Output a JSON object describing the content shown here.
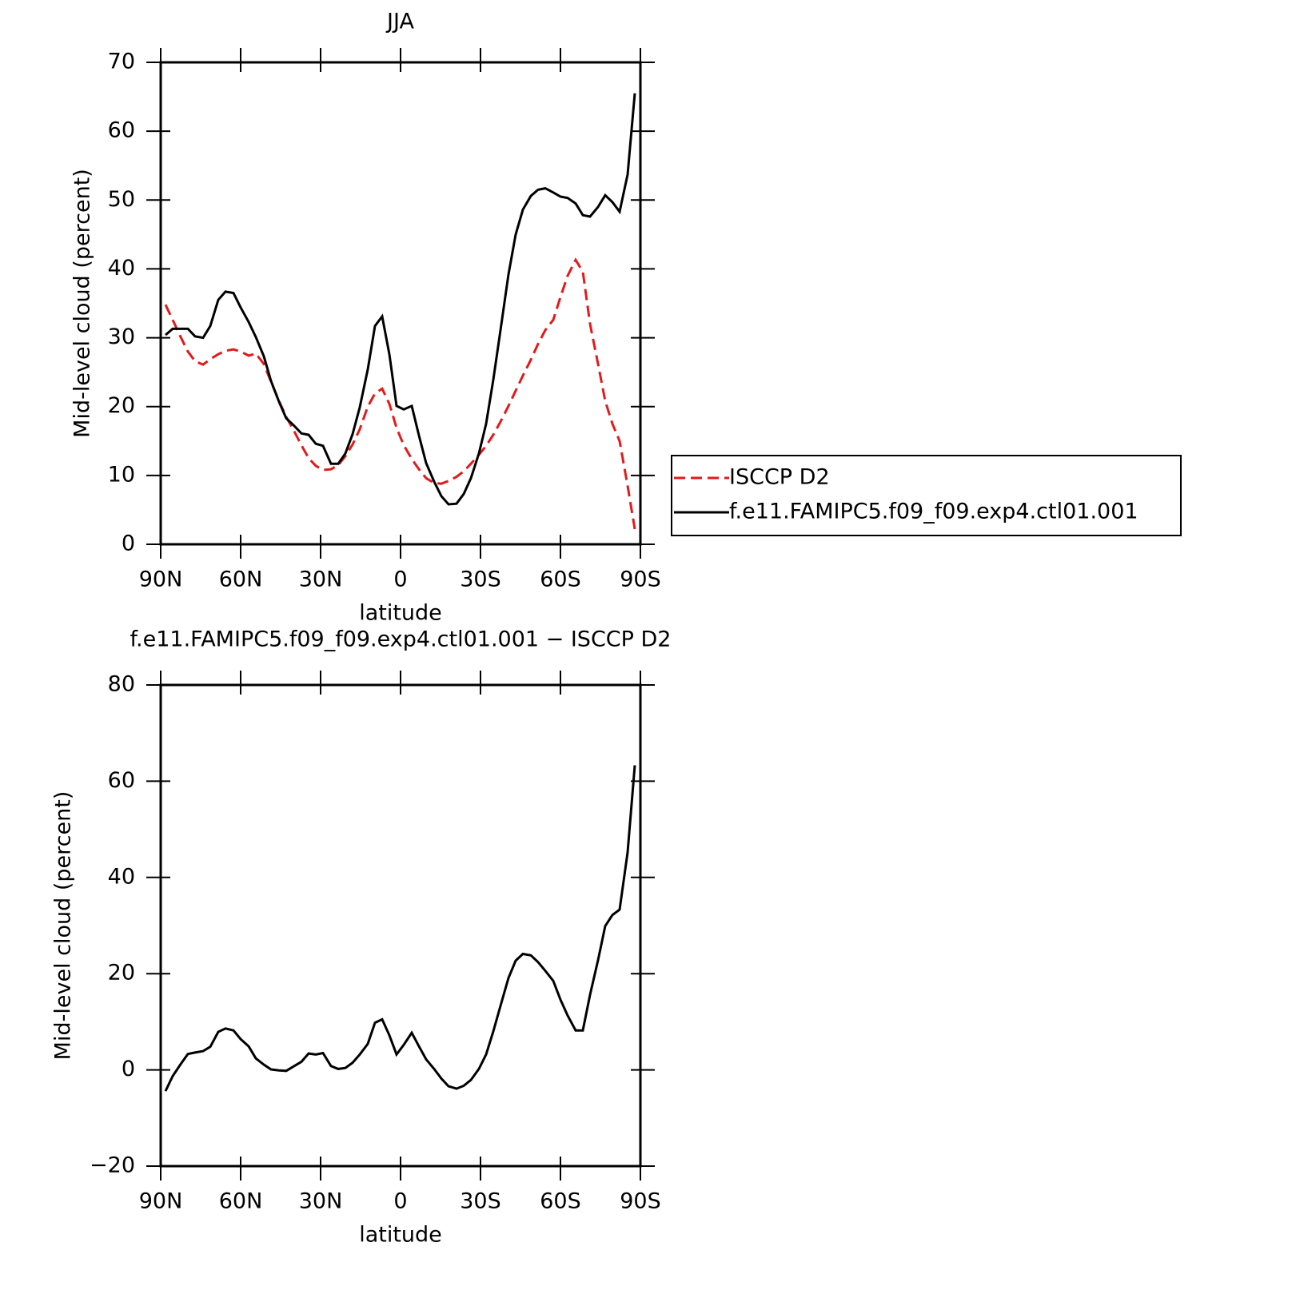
{
  "chart_data": [
    {
      "type": "line",
      "title": "JJA",
      "x_label": "latitude",
      "y_label": "Mid-level cloud (percent)",
      "x": [
        88.2,
        85.5,
        82.5,
        79.8,
        77.1,
        74.1,
        71.4,
        68.4,
        65.7,
        62.7,
        60.0,
        57.0,
        54.3,
        51.3,
        48.6,
        45.6,
        42.9,
        39.9,
        37.2,
        34.5,
        31.8,
        29.1,
        26.1,
        23.4,
        20.7,
        18.0,
        15.3,
        12.3,
        9.6,
        6.9,
        4.2,
        1.5,
        -1.2,
        -4.2,
        -6.9,
        -9.6,
        -12.6,
        -15.3,
        -18.0,
        -21.0,
        -23.7,
        -26.4,
        -29.4,
        -32.1,
        -34.8,
        -37.5,
        -40.5,
        -43.2,
        -45.9,
        -48.9,
        -51.6,
        -54.3,
        -57.3,
        -60.0,
        -62.7,
        -65.7,
        -68.4,
        -71.1,
        -74.1,
        -76.8,
        -79.5,
        -82.2,
        -85.2,
        -87.9
      ],
      "series": [
        {
          "name": "ISCCP D2",
          "color": "#e31a1c",
          "dashed": true,
          "values": [
            34.8,
            32.6,
            30.1,
            28.0,
            26.6,
            26.1,
            26.9,
            27.6,
            28.1,
            28.3,
            28.0,
            27.4,
            27.7,
            26.2,
            23.6,
            20.8,
            18.5,
            16.4,
            14.4,
            12.5,
            11.4,
            10.8,
            10.9,
            11.5,
            12.8,
            14.5,
            16.7,
            20.0,
            21.9,
            22.6,
            20.4,
            16.9,
            14.4,
            12.4,
            10.9,
            9.6,
            8.9,
            8.8,
            9.2,
            9.8,
            10.6,
            11.7,
            13.0,
            14.3,
            15.9,
            17.8,
            20.1,
            22.3,
            24.5,
            26.8,
            29.1,
            31.1,
            32.6,
            35.9,
            39.0,
            41.3,
            39.6,
            32.0,
            26.2,
            20.8,
            17.5,
            15.0,
            8.5,
            2.2
          ]
        },
        {
          "name": "f.e11.FAMIPC5.f09_f09.exp4.ctl01.001",
          "color": "#000000",
          "dashed": false,
          "values": [
            30.4,
            31.3,
            31.3,
            31.3,
            30.2,
            30.0,
            31.7,
            35.5,
            36.7,
            36.5,
            34.4,
            32.3,
            30.1,
            27.3,
            23.7,
            20.7,
            18.3,
            17.2,
            16.1,
            15.9,
            14.6,
            14.3,
            11.7,
            11.7,
            13.2,
            16.0,
            19.9,
            25.4,
            31.7,
            33.1,
            27.6,
            20.1,
            19.6,
            20.1,
            15.8,
            11.8,
            9.1,
            7.0,
            5.8,
            5.9,
            7.3,
            9.6,
            13.2,
            17.5,
            23.9,
            31.1,
            39.2,
            45.0,
            48.6,
            50.6,
            51.5,
            51.7,
            51.1,
            50.5,
            50.3,
            49.5,
            47.8,
            47.6,
            49.0,
            50.7,
            49.7,
            48.3,
            53.7,
            65.5
          ]
        }
      ],
      "xlim": [
        90,
        -90
      ],
      "xticks": [
        {
          "value": 90,
          "label": "90N"
        },
        {
          "value": 60,
          "label": "60N"
        },
        {
          "value": 30,
          "label": "30N"
        },
        0,
        {
          "value": -30,
          "label": "30S"
        },
        {
          "value": -60,
          "label": "60S"
        },
        {
          "value": -90,
          "label": "90S"
        }
      ],
      "ylim": [
        0,
        70
      ],
      "yticks": [
        0,
        10,
        20,
        30,
        40,
        50,
        60,
        70
      ],
      "legend": "right"
    },
    {
      "type": "line",
      "title": "f.e11.FAMIPC5.f09_f09.exp4.ctl01.001 − ISCCP D2",
      "x_label": "latitude",
      "y_label": "Mid-level cloud (percent)",
      "x": [
        88.2,
        85.5,
        82.5,
        79.8,
        77.1,
        74.1,
        71.4,
        68.4,
        65.7,
        62.7,
        60.0,
        57.0,
        54.3,
        51.3,
        48.6,
        45.6,
        42.9,
        39.9,
        37.2,
        34.5,
        31.8,
        29.1,
        26.1,
        23.4,
        20.7,
        18.0,
        15.3,
        12.3,
        9.6,
        6.9,
        4.2,
        1.5,
        -1.2,
        -4.2,
        -6.9,
        -9.6,
        -12.6,
        -15.3,
        -18.0,
        -21.0,
        -23.7,
        -26.4,
        -29.4,
        -32.1,
        -34.8,
        -37.5,
        -40.5,
        -43.2,
        -45.9,
        -48.9,
        -51.6,
        -54.3,
        -57.3,
        -60.0,
        -62.7,
        -65.7,
        -68.4,
        -71.1,
        -74.1,
        -76.8,
        -79.5,
        -82.2,
        -85.2,
        -87.9
      ],
      "series": [
        {
          "color": "#000000",
          "dashed": false,
          "values": [
            -4.4,
            -1.3,
            1.2,
            3.3,
            3.6,
            3.9,
            4.8,
            7.9,
            8.6,
            8.2,
            6.4,
            4.9,
            2.4,
            1.1,
            0.1,
            -0.1,
            -0.2,
            0.8,
            1.7,
            3.4,
            3.2,
            3.5,
            0.8,
            0.2,
            0.4,
            1.5,
            3.2,
            5.4,
            9.8,
            10.5,
            7.2,
            3.2,
            5.2,
            7.7,
            4.9,
            2.2,
            0.2,
            -1.8,
            -3.4,
            -3.9,
            -3.3,
            -2.1,
            0.2,
            3.2,
            8.0,
            13.3,
            19.1,
            22.7,
            24.1,
            23.8,
            22.4,
            20.6,
            18.5,
            14.6,
            11.3,
            8.2,
            8.2,
            15.6,
            22.8,
            29.9,
            32.2,
            33.3,
            45.2,
            63.3
          ]
        }
      ],
      "xlim": [
        90,
        -90
      ],
      "xticks": [
        {
          "value": 90,
          "label": "90N"
        },
        {
          "value": 60,
          "label": "60N"
        },
        {
          "value": 30,
          "label": "30N"
        },
        0,
        {
          "value": -30,
          "label": "30S"
        },
        {
          "value": -60,
          "label": "60S"
        },
        {
          "value": -90,
          "label": "90S"
        }
      ],
      "ylim": [
        -20,
        80
      ],
      "yticks": [
        {
          "value": -20,
          "label": "−20"
        },
        0,
        20,
        40,
        60,
        80
      ]
    }
  ]
}
